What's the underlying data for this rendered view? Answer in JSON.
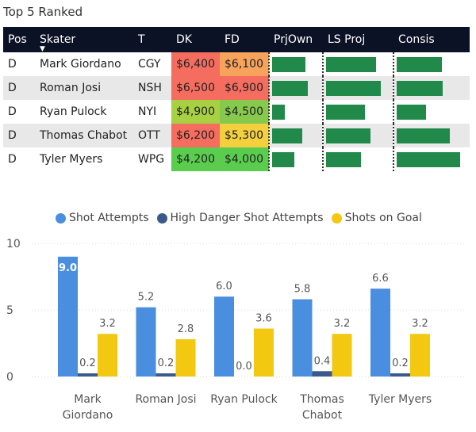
{
  "title": "Top 5 Ranked",
  "table": {
    "columns": [
      "Pos",
      "Skater",
      "T",
      "DK",
      "FD",
      "PrjOwn",
      "LS Proj",
      "Consis"
    ],
    "sort_indicator": "▼",
    "rows": [
      {
        "pos": "D",
        "skater": "Mark Giordano",
        "team": "CGY",
        "dk": "$6,400",
        "fd": "$6,100",
        "dk_color": "#f46d5f",
        "fd_color": "#f7a35c",
        "prjown": 0.8,
        "lsproj": 0.82,
        "consis": 0.7
      },
      {
        "pos": "D",
        "skater": "Roman Josi",
        "team": "NSH",
        "dk": "$6,500",
        "fd": "$6,900",
        "dk_color": "#f46d5f",
        "fd_color": "#f46d5f",
        "prjown": 0.84,
        "lsproj": 0.9,
        "consis": 0.71
      },
      {
        "pos": "D",
        "skater": "Ryan Pulock",
        "team": "NYI",
        "dk": "$4,900",
        "fd": "$4,500",
        "dk_color": "#a8d043",
        "fd_color": "#86c94d",
        "prjown": 0.3,
        "lsproj": 0.64,
        "consis": 0.45
      },
      {
        "pos": "D",
        "skater": "Thomas Chabot",
        "team": "OTT",
        "dk": "$6,200",
        "fd": "$5,300",
        "dk_color": "#f46d5f",
        "fd_color": "#f4d03f",
        "prjown": 0.72,
        "lsproj": 0.73,
        "consis": 0.82
      },
      {
        "pos": "D",
        "skater": "Tyler Myers",
        "team": "WPG",
        "dk": "$4,200",
        "fd": "$4,000",
        "dk_color": "#5acd4f",
        "fd_color": "#5acd4f",
        "prjown": 0.52,
        "lsproj": 0.57,
        "consis": 0.98
      }
    ]
  },
  "colors": {
    "bar_green": "#218a4a",
    "header_bg": "#0c1226"
  },
  "chart_data": {
    "type": "bar",
    "categories": [
      "Mark Giordano",
      "Roman Josi",
      "Ryan Pulock",
      "Thomas Chabot",
      "Tyler Myers"
    ],
    "category_lines": [
      [
        "Mark",
        "Giordano"
      ],
      [
        "Roman Josi"
      ],
      [
        "Ryan Pulock"
      ],
      [
        "Thomas",
        "Chabot"
      ],
      [
        "Tyler Myers"
      ]
    ],
    "series": [
      {
        "name": "Shot Attempts",
        "color": "#4a8ee0",
        "values": [
          9.0,
          5.2,
          6.0,
          5.8,
          6.6
        ],
        "labels": [
          "9.0",
          "5.2",
          "6.0",
          "5.8",
          "6.6"
        ]
      },
      {
        "name": "High Danger Shot Attempts",
        "color": "#3b5a8c",
        "values": [
          0.2,
          0.2,
          0.0,
          0.4,
          0.2
        ],
        "labels": [
          "0.2",
          "0.2",
          "0.0",
          "0.4",
          "0.2"
        ]
      },
      {
        "name": "Shots on Goal",
        "color": "#f2c811",
        "values": [
          3.2,
          2.8,
          3.6,
          3.2,
          3.2
        ],
        "labels": [
          "3.2",
          "2.8",
          "3.6",
          "3.2",
          "3.2"
        ]
      }
    ],
    "ylim": [
      0,
      10
    ],
    "yticks": [
      0,
      5,
      10
    ],
    "ytick_labels": [
      "0",
      "5",
      "10"
    ],
    "legend_position": "top",
    "grid": true
  }
}
